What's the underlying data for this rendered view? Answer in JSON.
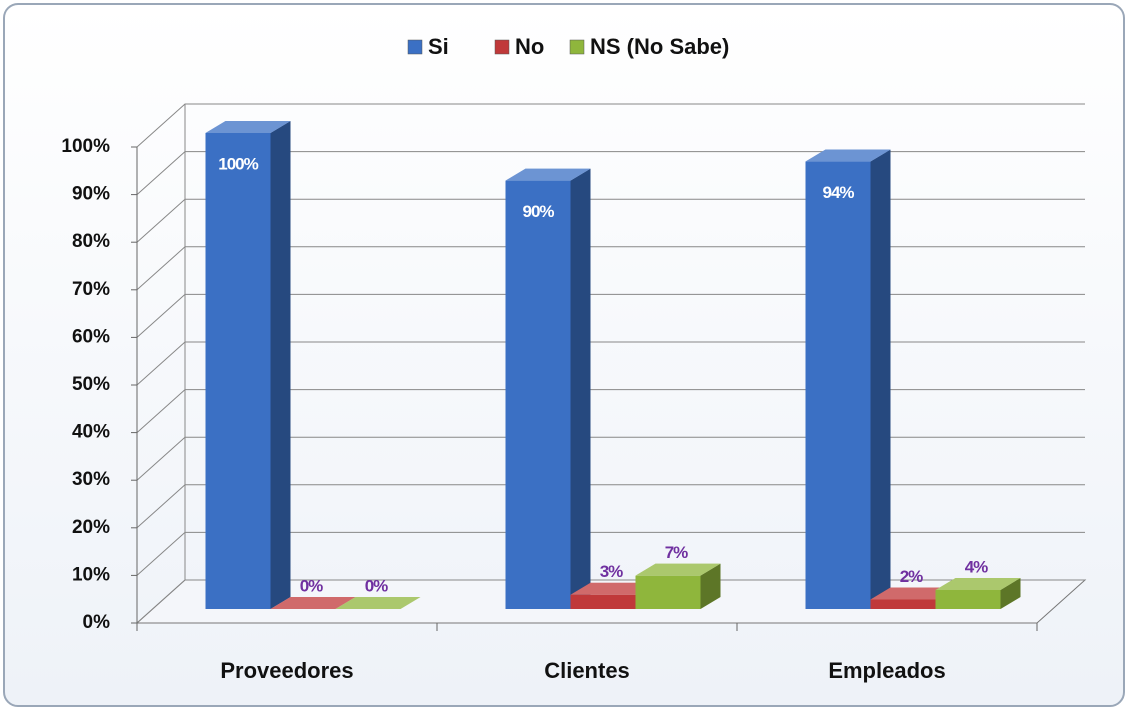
{
  "chart_data": {
    "type": "bar3d",
    "categories": [
      "Proveedores",
      "Clientes",
      "Empleados"
    ],
    "series": [
      {
        "name": "Si",
        "color": "#3b70c4",
        "values": [
          100,
          90,
          94
        ],
        "value_labels": [
          "100%",
          "90%",
          "94%"
        ]
      },
      {
        "name": "No",
        "color": "#c0393a",
        "values": [
          0,
          3,
          2
        ],
        "value_labels": [
          "0%",
          "3%",
          "2%"
        ]
      },
      {
        "name": "NS (No Sabe)",
        "color": "#8fb63c",
        "values": [
          0,
          7,
          4
        ],
        "value_labels": [
          "0%",
          "7%",
          "4%"
        ]
      }
    ],
    "ylim": [
      0,
      100
    ],
    "yticks": [
      {
        "value": 0,
        "label": "0%"
      },
      {
        "value": 10,
        "label": "10%"
      },
      {
        "value": 20,
        "label": "20%"
      },
      {
        "value": 30,
        "label": "30%"
      },
      {
        "value": 40,
        "label": "40%"
      },
      {
        "value": 50,
        "label": "50%"
      },
      {
        "value": 60,
        "label": "60%"
      },
      {
        "value": 70,
        "label": "70%"
      },
      {
        "value": 80,
        "label": "80%"
      },
      {
        "value": 90,
        "label": "90%"
      },
      {
        "value": 100,
        "label": "100%"
      }
    ],
    "grid": true,
    "legend": "top"
  }
}
